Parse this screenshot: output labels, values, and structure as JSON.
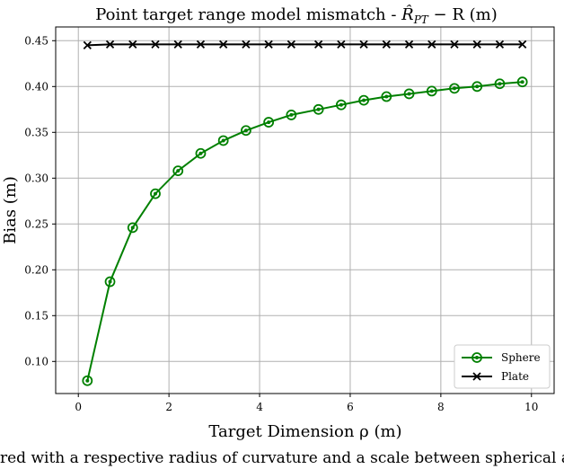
{
  "chart_data": {
    "type": "line",
    "title": "Point target range model mismatch - R̂_PT − R (m)",
    "title_main": "Point target range model mismatch - ",
    "title_expr": "R̂",
    "title_sub": "PT",
    "title_tail": " − R (m)",
    "xlabel": "Target Dimension ρ (m)",
    "ylabel": "Bias (m)",
    "xlim": [
      -0.5,
      10.5
    ],
    "ylim": [
      0.065,
      0.465
    ],
    "xticks": [
      0,
      2,
      4,
      6,
      8,
      10
    ],
    "yticks": [
      0.1,
      0.15,
      0.2,
      0.25,
      0.3,
      0.35,
      0.4,
      0.45
    ],
    "grid": true,
    "legend_position": "bottom-right",
    "series": [
      {
        "name": "Sphere",
        "color": "#008000",
        "marker": "circle",
        "x": [
          0.2,
          0.7,
          1.2,
          1.7,
          2.2,
          2.7,
          3.2,
          3.7,
          4.2,
          4.7,
          5.3,
          5.8,
          6.3,
          6.8,
          7.3,
          7.8,
          8.3,
          8.8,
          9.3,
          9.8
        ],
        "y": [
          0.079,
          0.187,
          0.246,
          0.283,
          0.308,
          0.327,
          0.341,
          0.352,
          0.361,
          0.369,
          0.375,
          0.38,
          0.385,
          0.389,
          0.392,
          0.395,
          0.398,
          0.4,
          0.403,
          0.405
        ]
      },
      {
        "name": "Plate",
        "color": "#000000",
        "marker": "x",
        "x": [
          0.2,
          0.7,
          1.2,
          1.7,
          2.2,
          2.7,
          3.2,
          3.7,
          4.2,
          4.7,
          5.3,
          5.8,
          6.3,
          6.8,
          7.3,
          7.8,
          8.3,
          8.8,
          9.3,
          9.8
        ],
        "y": [
          0.445,
          0.446,
          0.446,
          0.446,
          0.446,
          0.446,
          0.446,
          0.446,
          0.446,
          0.446,
          0.446,
          0.446,
          0.446,
          0.446,
          0.446,
          0.446,
          0.446,
          0.446,
          0.446,
          0.446
        ]
      }
    ]
  },
  "caption": "red with a respective radius of curvature and a scale between spherical and planar targets."
}
